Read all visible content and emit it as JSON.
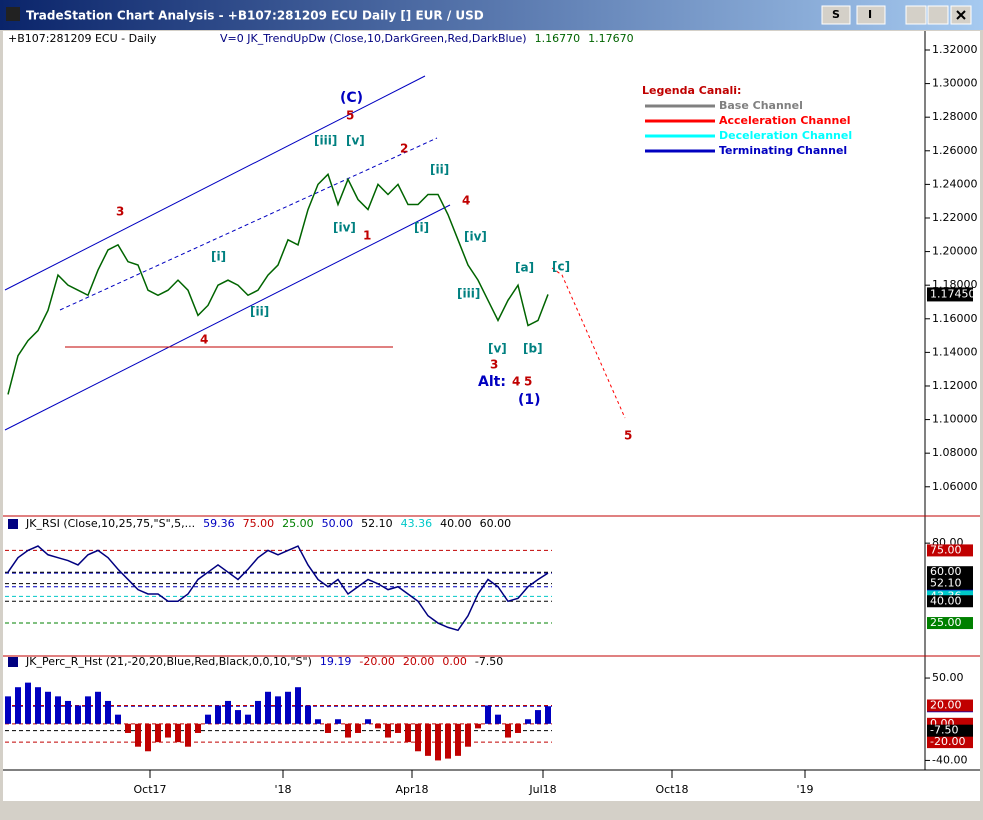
{
  "window": {
    "title": "TradeStation Chart Analysis - +B107:281209 ECU Daily [] EUR / USD",
    "buttons": [
      "S",
      "I"
    ]
  },
  "price_panel": {
    "type": "line",
    "header": "+B107:281209 ECU - Daily",
    "indicator": "V=0  JK_TrendUpDw (Close,10,DarkGreen,Red,DarkBlue)",
    "indicator_values": [
      "1.16770",
      "1.17670"
    ],
    "color": "#006400",
    "values": [
      1.115,
      1.138,
      1.147,
      1.153,
      1.165,
      1.186,
      1.18,
      1.177,
      1.174,
      1.189,
      1.201,
      1.204,
      1.194,
      1.192,
      1.177,
      1.174,
      1.177,
      1.183,
      1.177,
      1.162,
      1.168,
      1.18,
      1.183,
      1.18,
      1.174,
      1.177,
      1.186,
      1.192,
      1.207,
      1.204,
      1.225,
      1.24,
      1.246,
      1.228,
      1.243,
      1.231,
      1.225,
      1.24,
      1.234,
      1.24,
      1.228,
      1.228,
      1.234,
      1.234,
      1.222,
      1.207,
      1.192,
      1.183,
      1.171,
      1.159,
      1.171,
      1.18,
      1.156,
      1.159,
      1.1745
    ],
    "last_label": "1.17450",
    "ylim": [
      1.0432,
      1.3319
    ],
    "yticks": [
      {
        "value": 1.32,
        "label": "1.32000"
      },
      {
        "value": 1.3,
        "label": "1.30000"
      },
      {
        "value": 1.28,
        "label": "1.28000"
      },
      {
        "value": 1.26,
        "label": "1.26000"
      },
      {
        "value": 1.24,
        "label": "1.24000"
      },
      {
        "value": 1.22,
        "label": "1.22000"
      },
      {
        "value": 1.2,
        "label": "1.20000"
      },
      {
        "value": 1.18,
        "label": "1.18000"
      },
      {
        "value": 1.16,
        "label": "1.16000"
      },
      {
        "value": 1.14,
        "label": "1.14000"
      },
      {
        "value": 1.12,
        "label": "1.12000"
      },
      {
        "value": 1.1,
        "label": "1.10000"
      },
      {
        "value": 1.08,
        "label": "1.08000"
      },
      {
        "value": 1.06,
        "label": "1.06000"
      }
    ],
    "annotations": [
      "(C)",
      "5",
      "[iii]",
      "[v]",
      "2",
      "[ii]",
      "3",
      "4",
      "[iv]",
      "1",
      "[i]",
      "[iv]",
      "[i]",
      "[a]",
      "[c]",
      "[ii]",
      "[iii]",
      "4",
      "[v]",
      "[b]",
      "3",
      "Alt:",
      "4",
      "5",
      "(1)",
      "5"
    ],
    "legend": {
      "title": "Legenda Canali:",
      "items": [
        {
          "name": "Base Channel",
          "color": "#808080"
        },
        {
          "name": "Acceleration Channel",
          "color": "#ff0000"
        },
        {
          "name": "Deceleration Channel",
          "color": "#00ffff"
        },
        {
          "name": "Terminating Channel",
          "color": "#0000c0"
        }
      ]
    }
  },
  "rsi_panel": {
    "type": "line",
    "header": "JK_RSI (Close,10,25,75,\"S\",5,...",
    "color": "#000080",
    "header_values": [
      {
        "value": 59.36,
        "label": "59.36",
        "color": "#0000c0"
      },
      {
        "value": 75,
        "label": "75.00",
        "color": "#c00000"
      },
      {
        "value": 25,
        "label": "25.00",
        "color": "#008000"
      },
      {
        "value": 50,
        "label": "50.00",
        "color": "#0000c0"
      },
      {
        "value": 52.1,
        "label": "52.10",
        "color": "#000000"
      },
      {
        "value": 43.36,
        "label": "43.36",
        "color": "#00c8c8"
      },
      {
        "value": 40,
        "label": "40.00",
        "color": "#000000"
      },
      {
        "value": 60,
        "label": "60.00",
        "color": "#000000"
      }
    ],
    "values": [
      60,
      70,
      75,
      78,
      72,
      70,
      68,
      65,
      72,
      75,
      70,
      62,
      55,
      48,
      45,
      45,
      40,
      40,
      45,
      55,
      60,
      65,
      60,
      55,
      62,
      70,
      75,
      72,
      75,
      78,
      65,
      55,
      50,
      55,
      45,
      50,
      55,
      52,
      48,
      50,
      45,
      40,
      30,
      25,
      22,
      20,
      30,
      45,
      55,
      50,
      40,
      42,
      50,
      55,
      59.36
    ],
    "ylim": [
      3,
      98
    ],
    "yticks": [
      {
        "value": 80,
        "label": "80.00"
      }
    ]
  },
  "perc_panel": {
    "type": "bar",
    "header": "JK_Perc_R_Hst (21,-20,20,Blue,Red,Black,0,0,10,\"S\")",
    "header_values": [
      {
        "value": 19.19,
        "label": "19.19",
        "color": "#0000c0"
      },
      {
        "value": -20,
        "label": "-20.00",
        "color": "#c00000"
      },
      {
        "value": 20,
        "label": "20.00",
        "color": "#c00000"
      },
      {
        "value": 0,
        "label": "0.00",
        "color": "#c00000"
      },
      {
        "value": -7.5,
        "label": "-7.50",
        "color": "#000000"
      }
    ],
    "colors": {
      "positive": "#0000c0",
      "negative": "#c00000"
    },
    "values": [
      30,
      40,
      45,
      40,
      35,
      30,
      25,
      20,
      30,
      35,
      25,
      10,
      -10,
      -25,
      -30,
      -20,
      -15,
      -20,
      -25,
      -10,
      10,
      20,
      25,
      15,
      10,
      25,
      35,
      30,
      35,
      40,
      20,
      5,
      -10,
      5,
      -15,
      -10,
      5,
      -5,
      -15,
      -10,
      -20,
      -30,
      -35,
      -40,
      -38,
      -35,
      -25,
      -5,
      20,
      10,
      -15,
      -10,
      5,
      15,
      19.19
    ],
    "ylim": [
      -45,
      73
    ],
    "yticks": [
      {
        "value": 50,
        "label": "50.00"
      },
      {
        "value": -40,
        "label": "-40.00"
      }
    ]
  },
  "x_axis": {
    "labels": [
      "Oct17",
      "'18",
      "Apr18",
      "Jul18",
      "Oct18",
      "'19"
    ]
  }
}
